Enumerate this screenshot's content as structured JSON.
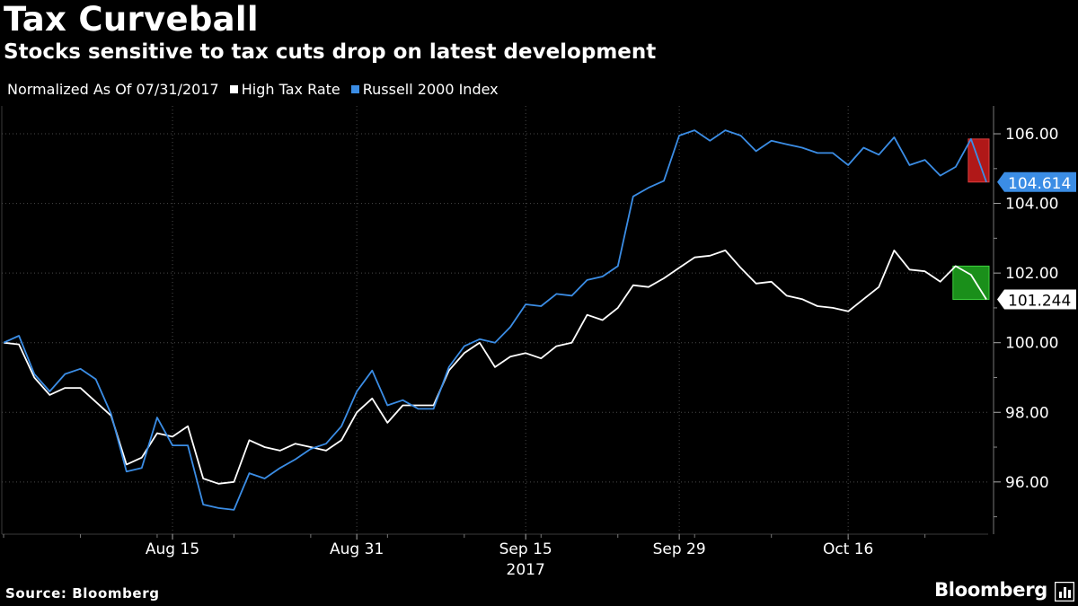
{
  "header": {
    "title": "Tax Curveball",
    "subtitle": "Stocks sensitive to tax cuts drop on latest development"
  },
  "legend": {
    "normalization_note": "Normalized As Of 07/31/2017",
    "items": [
      {
        "label": "High Tax Rate",
        "color": "#ffffff"
      },
      {
        "label": "Russell 2000 Index",
        "color": "#3b8de5"
      }
    ]
  },
  "footer": {
    "source": "Source: Bloomberg",
    "brand": "Bloomberg"
  },
  "chart_data": {
    "type": "line",
    "title": "Tax Curveball",
    "subtitle": "Stocks sensitive to tax cuts drop on latest development",
    "xlabel": "",
    "ylabel": "",
    "ylim": [
      94.5,
      106.8
    ],
    "yticks": [
      96,
      98,
      100,
      102,
      104,
      106
    ],
    "ytick_labels": [
      "96.00",
      "98.00",
      "100.00",
      "102.00",
      "104.00",
      "106.00"
    ],
    "xtick_labels": [
      "Aug 15",
      "Aug 31",
      "Sep 15",
      "Sep 29",
      "Oct 16"
    ],
    "xtick_indices": [
      11,
      23,
      34,
      44,
      55
    ],
    "year_label": "2017",
    "grid": true,
    "legend_position": "top-left",
    "series": [
      {
        "name": "High Tax Rate",
        "color": "#ffffff",
        "last_value_label": "101.244",
        "values": [
          100.0,
          99.95,
          99.0,
          98.5,
          98.7,
          98.7,
          98.3,
          97.9,
          96.5,
          96.7,
          97.4,
          97.3,
          97.6,
          96.1,
          95.95,
          96.0,
          97.2,
          97.0,
          96.9,
          97.1,
          97.0,
          96.9,
          97.2,
          98.0,
          98.4,
          97.7,
          98.2,
          98.2,
          98.2,
          99.2,
          99.7,
          100.0,
          99.3,
          99.6,
          99.7,
          99.55,
          99.9,
          100.0,
          100.8,
          100.65,
          101.0,
          101.65,
          101.6,
          101.85,
          102.15,
          102.45,
          102.5,
          102.65,
          102.15,
          101.7,
          101.75,
          101.35,
          101.25,
          101.05,
          101.0,
          100.9,
          101.25,
          101.6,
          102.65,
          102.1,
          102.05,
          101.75,
          102.2,
          101.95,
          101.244
        ]
      },
      {
        "name": "Russell 2000 Index",
        "color": "#3b8de5",
        "last_value_label": "104.614",
        "values": [
          100.0,
          100.2,
          99.1,
          98.6,
          99.1,
          99.25,
          98.95,
          97.95,
          96.3,
          96.4,
          97.85,
          97.05,
          97.05,
          95.35,
          95.25,
          95.2,
          96.25,
          96.1,
          96.4,
          96.65,
          96.95,
          97.1,
          97.6,
          98.6,
          99.2,
          98.2,
          98.35,
          98.1,
          98.1,
          99.3,
          99.9,
          100.1,
          100.0,
          100.45,
          101.1,
          101.05,
          101.4,
          101.35,
          101.8,
          101.9,
          102.2,
          104.2,
          104.45,
          104.65,
          105.95,
          106.1,
          105.8,
          106.1,
          105.95,
          105.5,
          105.8,
          105.7,
          105.6,
          105.45,
          105.45,
          105.1,
          105.6,
          105.4,
          105.9,
          105.1,
          105.25,
          104.8,
          105.05,
          105.85,
          104.614
        ]
      }
    ],
    "highlights": [
      {
        "series": "Russell 2000 Index",
        "from_index": 63,
        "to_index": 64,
        "color": "#b01818",
        "direction": "down"
      },
      {
        "series": "High Tax Rate",
        "from_index": 62,
        "to_index": 64,
        "color": "#1a8f1a",
        "direction": "down"
      }
    ]
  }
}
